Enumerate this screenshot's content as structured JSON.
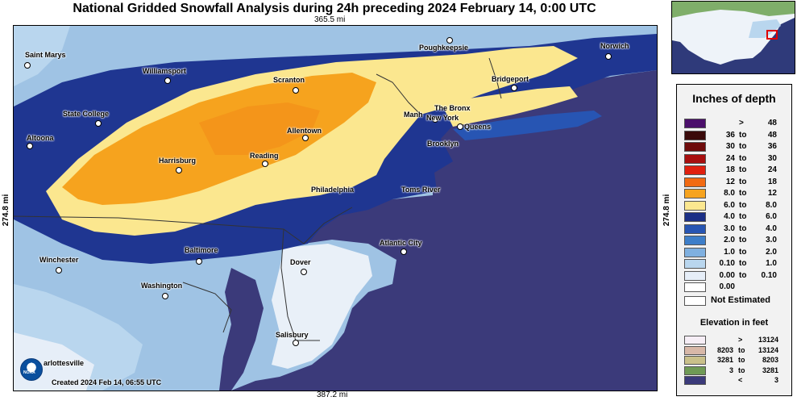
{
  "title": "National Gridded Snowfall Analysis during 24h preceding 2024 February 14, 0:00 UTC",
  "dimensions": {
    "top": "365.5 mi",
    "bottom": "387.2 mi",
    "left": "274.8 mi",
    "right": "274.8 mi"
  },
  "cities": [
    {
      "name": "Saint Marys"
    },
    {
      "name": "Williamsport"
    },
    {
      "name": "Scranton"
    },
    {
      "name": "Poughkeepsie"
    },
    {
      "name": "Norwich"
    },
    {
      "name": "Bridgeport"
    },
    {
      "name": "State College"
    },
    {
      "name": "The Bronx"
    },
    {
      "name": "Manh"
    },
    {
      "name": "New York"
    },
    {
      "name": "Queens"
    },
    {
      "name": "Allentown"
    },
    {
      "name": "Altoona"
    },
    {
      "name": "Brooklyn"
    },
    {
      "name": "Reading"
    },
    {
      "name": "Harrisburg"
    },
    {
      "name": "Philadelphia"
    },
    {
      "name": "Toms River"
    },
    {
      "name": "Atlantic City"
    },
    {
      "name": "Baltimore"
    },
    {
      "name": "Winchester"
    },
    {
      "name": "Dover"
    },
    {
      "name": "Washington"
    },
    {
      "name": "Salisbury"
    },
    {
      "name": "arlottesville"
    }
  ],
  "footer": {
    "created": "Created 2024 Feb 14, 06:55 UTC",
    "logo_text": "NOAA"
  },
  "legend": {
    "title": "Inches of depth",
    "depth_bins": [
      {
        "from": "",
        "to_word": ">",
        "to": "48",
        "color": "#4b0f6b"
      },
      {
        "from": "36",
        "to_word": "to",
        "to": "48",
        "color": "#3a0a0a"
      },
      {
        "from": "30",
        "to_word": "to",
        "to": "36",
        "color": "#6e0b0b"
      },
      {
        "from": "24",
        "to_word": "to",
        "to": "30",
        "color": "#a80f0f"
      },
      {
        "from": "18",
        "to_word": "to",
        "to": "24",
        "color": "#e0200f"
      },
      {
        "from": "12",
        "to_word": "to",
        "to": "18",
        "color": "#f26a12"
      },
      {
        "from": "8.0",
        "to_word": "to",
        "to": "12",
        "color": "#f6a31e"
      },
      {
        "from": "6.0",
        "to_word": "to",
        "to": "8.0",
        "color": "#fbe78f"
      },
      {
        "from": "4.0",
        "to_word": "to",
        "to": "6.0",
        "color": "#1b2f86"
      },
      {
        "from": "3.0",
        "to_word": "to",
        "to": "4.0",
        "color": "#2755b3"
      },
      {
        "from": "2.0",
        "to_word": "to",
        "to": "3.0",
        "color": "#3d7ec9"
      },
      {
        "from": "1.0",
        "to_word": "to",
        "to": "2.0",
        "color": "#7fb0e0"
      },
      {
        "from": "0.10",
        "to_word": "to",
        "to": "1.0",
        "color": "#b9d6ee"
      },
      {
        "from": "0.00",
        "to_word": "to",
        "to": "0.10",
        "color": "#e6eef8"
      },
      {
        "from": "0.00",
        "to_word": "",
        "to": "",
        "color": "#ffffff"
      }
    ],
    "not_estimated": "Not Estimated",
    "elevation_title": "Elevation in feet",
    "elevation_bins": [
      {
        "from": "",
        "to_word": ">",
        "to": "13124",
        "color": "#f6eef6"
      },
      {
        "from": "8203",
        "to_word": "to",
        "to": "13124",
        "color": "#d8b8a8"
      },
      {
        "from": "3281",
        "to_word": "to",
        "to": "8203",
        "color": "#c9c08a"
      },
      {
        "from": "3",
        "to_word": "to",
        "to": "3281",
        "color": "#6f9a55"
      },
      {
        "from": "",
        "to_word": "<",
        "to": "3",
        "color": "#3b3a7a"
      }
    ]
  },
  "colors": {
    "ocean": "#3b3a7a",
    "snow_heavy": "#f6a31e",
    "snow_moderate": "#fbe78f",
    "snow_blue": "#1b2f86"
  }
}
